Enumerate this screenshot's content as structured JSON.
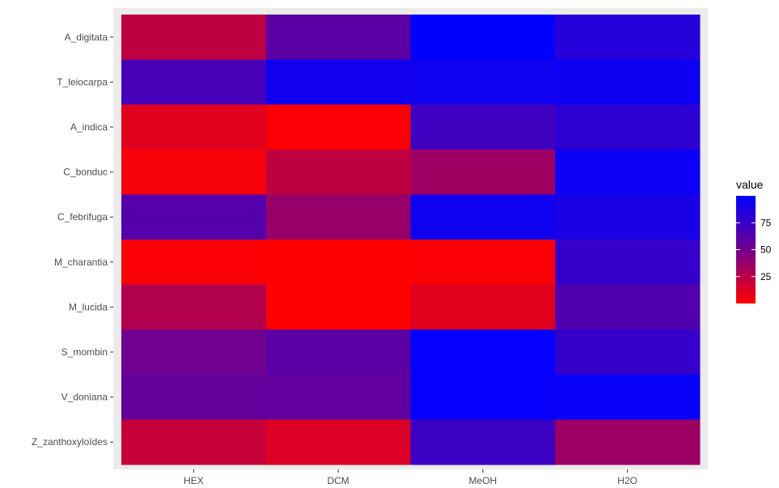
{
  "chart_data": {
    "type": "heatmap",
    "x_categories": [
      "HEX",
      "DCM",
      "MeOH",
      "H2O"
    ],
    "y_categories": [
      "A_digitata",
      "T_leiocarpa",
      "A_indica",
      "C_bonduc",
      "C_febrifuga",
      "M_charantia",
      "M_lucida",
      "S_mombin",
      "V_doniana",
      "Z_zanthoxyloïdes"
    ],
    "values": [
      [
        20,
        60,
        100,
        83
      ],
      [
        68,
        92,
        93,
        94
      ],
      [
        8,
        1,
        71,
        80
      ],
      [
        2,
        20,
        32,
        95
      ],
      [
        63,
        35,
        93,
        88
      ],
      [
        1,
        0,
        1,
        76
      ],
      [
        25,
        0,
        8,
        64
      ],
      [
        51,
        60,
        98,
        76
      ],
      [
        56,
        57,
        98,
        97
      ],
      [
        17,
        10,
        73,
        33
      ]
    ],
    "legend": {
      "title": "value",
      "ticks": [
        25,
        50,
        75
      ],
      "range": [
        0,
        100
      ],
      "low_color": "#ff0000",
      "high_color": "#0000ff",
      "position": "right"
    },
    "xlabel": "",
    "ylabel": "",
    "grid": true,
    "panel_background": "#ebebeb"
  }
}
